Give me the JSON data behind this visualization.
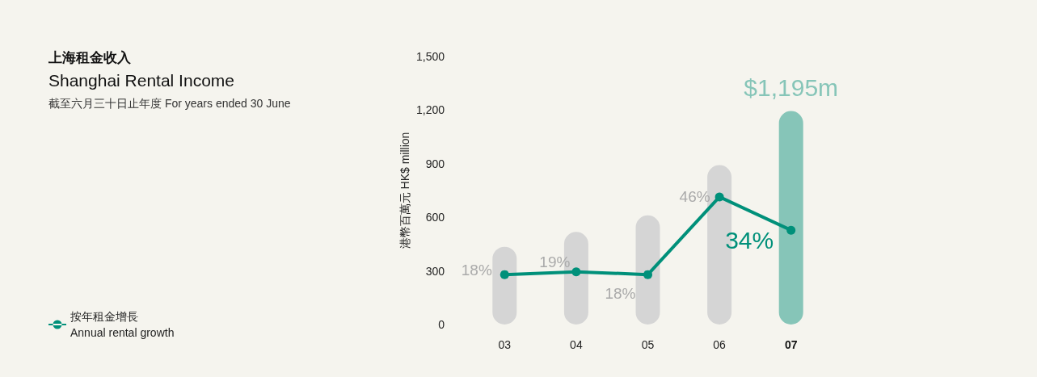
{
  "chart_data": {
    "type": "bar",
    "title": "上海租金收入\nShanghai Rental Income",
    "subtitle": "截至六月三十日止年度 For years ended 30 June",
    "ylabel": "港幣百萬元 HK$ million",
    "categories": [
      "03",
      "04",
      "05",
      "06",
      "07"
    ],
    "series": [
      {
        "colors": [
          "#d5d5d5",
          "#d5d5d5",
          "#d5d5d5",
          "#d5d5d5",
          "#86c5b8"
        ],
        "values": [
          435,
          518,
          611,
          892,
          1195
        ],
        "value_labels": [
          null,
          null,
          null,
          null,
          "$1,195m"
        ]
      },
      {
        "type": "line",
        "name": "按年租金增長\nAnnual rental growth",
        "color": "#00907a",
        "axis": "y2",
        "values": [
          18,
          19,
          18,
          46,
          34
        ],
        "value_labels": [
          "18%",
          "19%",
          "18%",
          "46%",
          "34%"
        ],
        "marker": "circle"
      }
    ],
    "ylim": [
      0,
      1500
    ],
    "yticks": [
      0,
      300,
      600,
      900,
      {
        "value": 1200,
        "label": "1,200"
      },
      {
        "value": 1500,
        "label": "1,500"
      }
    ],
    "grid": false,
    "legend": "bottom left"
  }
}
